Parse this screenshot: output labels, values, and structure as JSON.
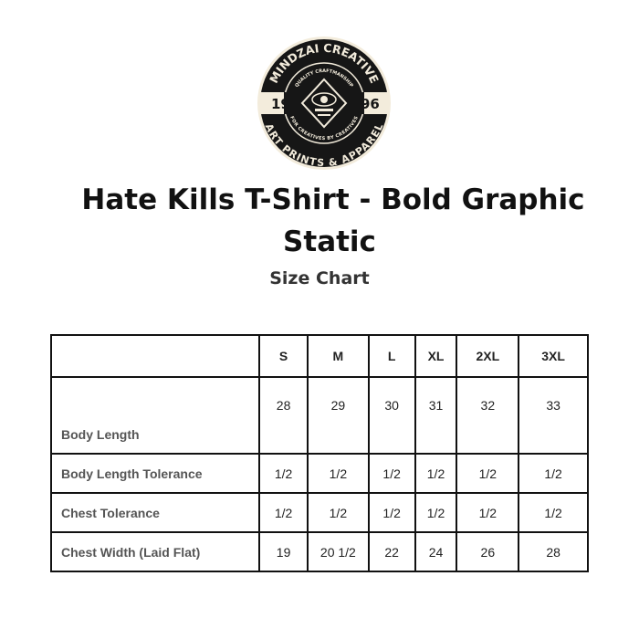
{
  "logo": {
    "top_text": "MINDZAI CREATIVE",
    "inner_top": "QUALITY CRAFTMANSHIP",
    "inner_bottom": "FOR CREATIVES BY CREATIVES",
    "bottom_text": "ART PRINTS & APPAREL",
    "left_year": "19",
    "right_year": "96"
  },
  "title_line1": "Hate Kills T-Shirt - Bold Graphic",
  "title_line2": "Static",
  "subtitle": "Size Chart",
  "table": {
    "headers": [
      "",
      "S",
      "M",
      "L",
      "XL",
      "2XL",
      "3XL"
    ],
    "rows": [
      {
        "label": "Body Length",
        "values": [
          "28",
          "29",
          "30",
          "31",
          "32",
          "33"
        ]
      },
      {
        "label": "Body Length Tolerance",
        "values": [
          "1/2",
          "1/2",
          "1/2",
          "1/2",
          "1/2",
          "1/2"
        ]
      },
      {
        "label": "Chest Tolerance",
        "values": [
          "1/2",
          "1/2",
          "1/2",
          "1/2",
          "1/2",
          "1/2"
        ]
      },
      {
        "label": "Chest Width (Laid Flat)",
        "values": [
          "19",
          "20 1/2",
          "22",
          "24",
          "26",
          "28"
        ]
      }
    ]
  }
}
